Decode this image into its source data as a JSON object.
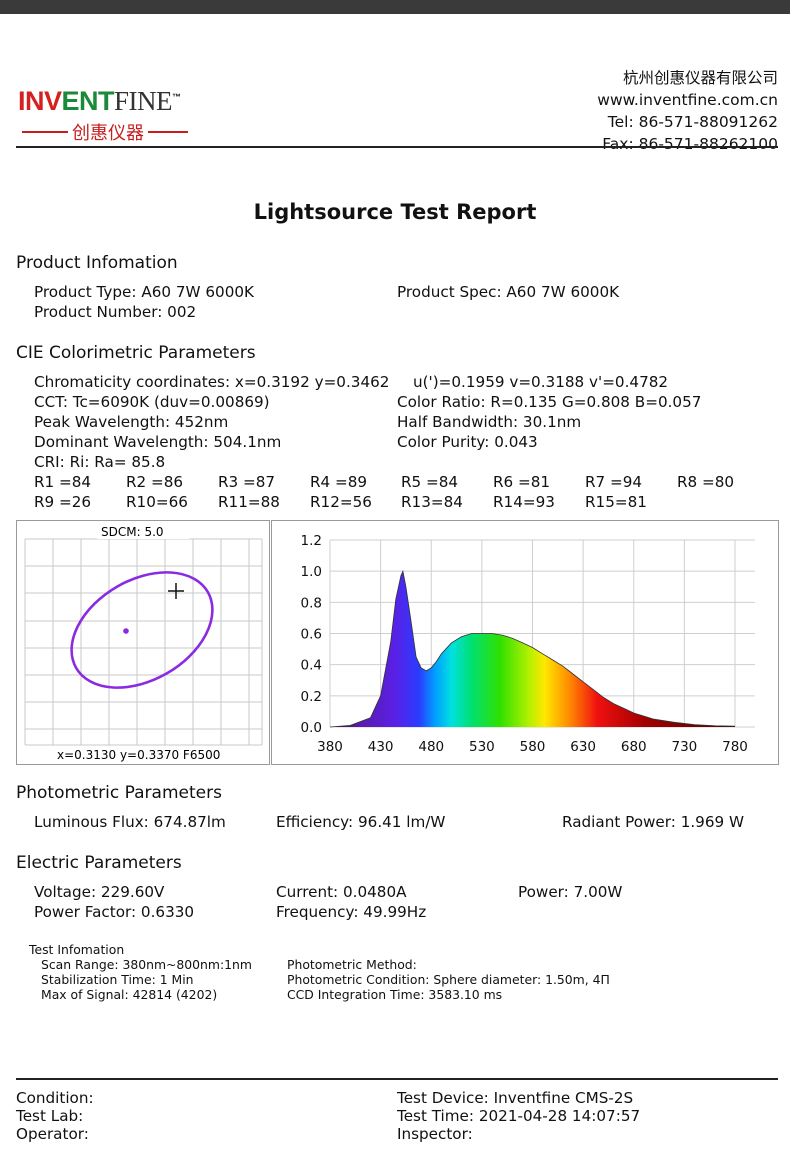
{
  "header": {
    "logo_part1": "IN",
    "logo_part2": "V",
    "logo_part3": "ENT",
    "logo_part4": "FINE",
    "logo_tm": "™",
    "logo_cn": "创惠仪器",
    "company_cn": "杭州创惠仪器有限公司",
    "website": "www.inventfine.com.cn",
    "tel": "Tel: 86-571-88091262",
    "fax": "Fax: 86-571-88262100"
  },
  "title": "Lightsource Test Report",
  "product": {
    "heading": "Product Infomation",
    "type": "Product Type: A60 7W 6000K",
    "spec": "Product Spec: A60 7W 6000K",
    "number": "Product Number: 002"
  },
  "cie": {
    "heading": "CIE Colorimetric Parameters",
    "chromaticity": "Chromaticity coordinates: x=0.3192 y=0.3462",
    "uv": "u(')=0.1959 v=0.3188 v'=0.4782",
    "cct": "CCT: Tc=6090K (duv=0.00869)",
    "color_ratio": "Color Ratio: R=0.135  G=0.808  B=0.057",
    "peak": "Peak Wavelength: 452nm",
    "half_bw": "Half Bandwidth: 30.1nm",
    "dominant": "Dominant Wavelength: 504.1nm",
    "purity": "Color Purity: 0.043",
    "cri": "CRI: Ri: Ra= 85.8",
    "r_values": [
      "R1 =84",
      "R2 =86",
      "R3 =87",
      "R4 =89",
      "R5 =84",
      "R6 =81",
      "R7 =94",
      "R8 =80",
      "R9 =26",
      "R10=66",
      "R11=88",
      "R12=56",
      "R13=84",
      "R14=93",
      "R15=81"
    ]
  },
  "sdcm": {
    "label": "SDCM:   5.0",
    "footer": "x=0.3130 y=0.3370 F6500"
  },
  "chart_data": {
    "type": "area",
    "title": "",
    "xlabel": "",
    "ylabel": "",
    "xlim": [
      380,
      780
    ],
    "ylim": [
      0,
      1.2
    ],
    "x_ticks": [
      380,
      430,
      480,
      530,
      580,
      630,
      680,
      730,
      780
    ],
    "y_ticks": [
      0.0,
      0.2,
      0.4,
      0.6,
      0.8,
      1.0,
      1.2
    ],
    "series": [
      {
        "x": [
          380,
          400,
          420,
          430,
          440,
          445,
          450,
          452,
          455,
          460,
          465,
          470,
          475,
          480,
          485,
          490,
          500,
          510,
          520,
          530,
          540,
          550,
          560,
          570,
          580,
          590,
          600,
          610,
          620,
          630,
          640,
          650,
          660,
          670,
          680,
          690,
          700,
          720,
          740,
          760,
          780
        ],
        "values": [
          0.0,
          0.01,
          0.06,
          0.2,
          0.55,
          0.82,
          0.97,
          1.0,
          0.9,
          0.68,
          0.45,
          0.38,
          0.36,
          0.38,
          0.42,
          0.47,
          0.54,
          0.58,
          0.6,
          0.6,
          0.6,
          0.59,
          0.57,
          0.54,
          0.51,
          0.47,
          0.43,
          0.39,
          0.34,
          0.29,
          0.24,
          0.19,
          0.15,
          0.12,
          0.09,
          0.07,
          0.05,
          0.03,
          0.015,
          0.008,
          0.005
        ]
      }
    ]
  },
  "photometric": {
    "heading": "Photometric Parameters",
    "flux": "Luminous Flux: 674.87lm",
    "efficiency": "Efficiency: 96.41 lm/W",
    "radiant": "Radiant Power: 1.969 W"
  },
  "electric": {
    "heading": "Electric Parameters",
    "voltage": "Voltage: 229.60V",
    "current": "Current: 0.0480A",
    "power": "Power: 7.00W",
    "pf": "Power Factor: 0.6330",
    "freq": "Frequency: 49.99Hz"
  },
  "test_info": {
    "heading": "Test Infomation",
    "scan": "Scan Range: 380nm~800nm:1nm",
    "stab": "Stabilization Time: 1 Min",
    "max": "Max of Signal: 42814 (4202)",
    "method": "Photometric Method:",
    "condition": "Photometric Condition: Sphere diameter: 1.50m, 4Π",
    "ccd": "CCD Integration Time: 3583.10 ms"
  },
  "footer": {
    "condition": "Condition:",
    "lab": "Test Lab:",
    "operator": "Operator:",
    "device": "Test Device: Inventfine CMS-2S",
    "time": "Test Time: 2021-04-28 14:07:57",
    "inspector": "Inspector:"
  }
}
